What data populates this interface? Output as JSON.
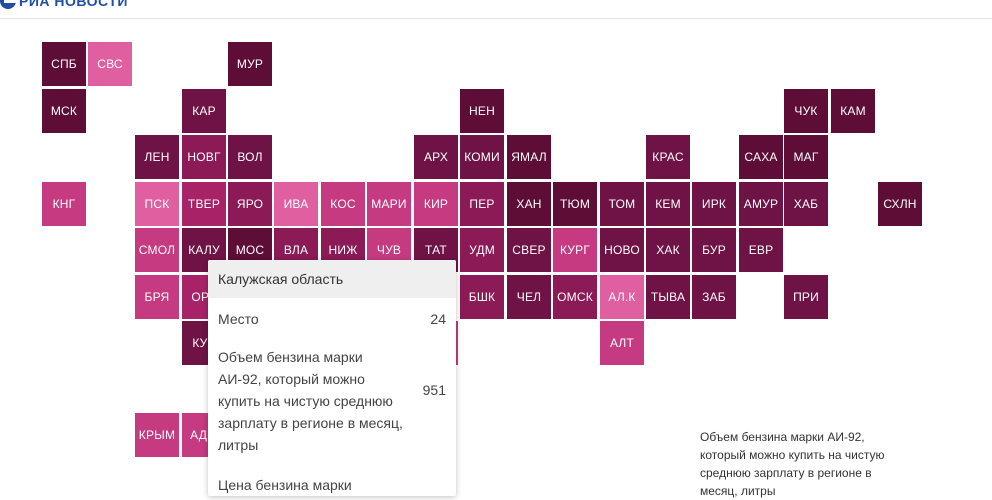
{
  "header": {
    "logo_text": "РИА НОВОСТИ",
    "logo_icon": "ria-logo-icon"
  },
  "colors": {
    "dark": "#5e0d36",
    "dark2": "#6f1245",
    "mid": "#8b1a57",
    "mid2": "#a82268",
    "light": "#c53a80",
    "pink": "#e05fa0",
    "tooltip_header_bg": "#efefef"
  },
  "map": {
    "tiles": [
      {
        "label": "СПБ",
        "shade": "dark"
      },
      {
        "label": "СВС",
        "shade": "pink"
      },
      {
        "label": "МУР",
        "shade": "dark"
      },
      {
        "label": "МСК",
        "shade": "dark"
      },
      {
        "label": "КАР",
        "shade": "dark2"
      },
      {
        "label": "НЕН",
        "shade": "dark"
      },
      {
        "label": "ЧУК",
        "shade": "dark"
      },
      {
        "label": "КАМ",
        "shade": "dark"
      },
      {
        "label": "ЛЕН",
        "shade": "dark2"
      },
      {
        "label": "НОВГ",
        "shade": "mid"
      },
      {
        "label": "ВОЛ",
        "shade": "dark2"
      },
      {
        "label": "АРХ",
        "shade": "dark2"
      },
      {
        "label": "КОМИ",
        "shade": "dark2"
      },
      {
        "label": "ЯМАЛ",
        "shade": "dark"
      },
      {
        "label": "КРАС",
        "shade": "dark2"
      },
      {
        "label": "САХА",
        "shade": "dark"
      },
      {
        "label": "МАГ",
        "shade": "dark"
      },
      {
        "label": "КНГ",
        "shade": "light"
      },
      {
        "label": "ПСК",
        "shade": "pink"
      },
      {
        "label": "ТВЕР",
        "shade": "mid2"
      },
      {
        "label": "ЯРО",
        "shade": "mid"
      },
      {
        "label": "ИВА",
        "shade": "pink"
      },
      {
        "label": "КОС",
        "shade": "light"
      },
      {
        "label": "МАРИ",
        "shade": "light"
      },
      {
        "label": "КИР",
        "shade": "light"
      },
      {
        "label": "ПЕР",
        "shade": "mid"
      },
      {
        "label": "ХАН",
        "shade": "dark"
      },
      {
        "label": "ТЮМ",
        "shade": "dark"
      },
      {
        "label": "ТОМ",
        "shade": "dark2"
      },
      {
        "label": "КЕМ",
        "shade": "dark2"
      },
      {
        "label": "ИРК",
        "shade": "dark2"
      },
      {
        "label": "АМУР",
        "shade": "dark2"
      },
      {
        "label": "ХАБ",
        "shade": "dark2"
      },
      {
        "label": "СХЛН",
        "shade": "dark"
      },
      {
        "label": "СМОЛ",
        "shade": "light"
      },
      {
        "label": "КАЛУ",
        "shade": "dark2"
      },
      {
        "label": "МОС",
        "shade": "dark"
      },
      {
        "label": "ВЛА",
        "shade": "mid"
      },
      {
        "label": "НИЖ",
        "shade": "mid"
      },
      {
        "label": "ЧУВ",
        "shade": "light"
      },
      {
        "label": "ТАТ",
        "shade": "dark2"
      },
      {
        "label": "УДМ",
        "shade": "mid"
      },
      {
        "label": "СВЕР",
        "shade": "dark2"
      },
      {
        "label": "КУРГ",
        "shade": "light"
      },
      {
        "label": "НОВО",
        "shade": "dark2"
      },
      {
        "label": "ХАК",
        "shade": "dark2"
      },
      {
        "label": "БУР",
        "shade": "dark2"
      },
      {
        "label": "ЕВР",
        "shade": "dark2"
      },
      {
        "label": "БРЯ",
        "shade": "light"
      },
      {
        "label": "ОРЛ",
        "shade": "mid2"
      },
      {
        "label": "БШК",
        "shade": "mid"
      },
      {
        "label": "ЧЕЛ",
        "shade": "dark2"
      },
      {
        "label": "ОМСК",
        "shade": "mid"
      },
      {
        "label": "АЛ.К",
        "shade": "pink"
      },
      {
        "label": "ТЫВА",
        "shade": "dark2"
      },
      {
        "label": "ЗАБ",
        "shade": "dark2"
      },
      {
        "label": "ПРИ",
        "shade": "dark2"
      },
      {
        "label": "КУР",
        "shade": "dark2"
      },
      {
        "label": "",
        "shade": "light"
      },
      {
        "label": "АЛТ",
        "shade": "light"
      },
      {
        "label": "КРЫМ",
        "shade": "light"
      },
      {
        "label": "АДЫ",
        "shade": "light"
      }
    ]
  },
  "tooltip": {
    "region": "Калужская область",
    "rank_label": "Место",
    "rank_value": "24",
    "volume_label": "Объем бензина марки АИ-92, который можно купить на чистую среднюю зарплату в регионе в месяц, литры",
    "volume_value": "951",
    "price_label": "Цена бензина марки"
  },
  "legend": {
    "text": "Объем бензина марки АИ-92, который можно купить на чистую среднюю зарплату в регионе в месяц, литры"
  }
}
